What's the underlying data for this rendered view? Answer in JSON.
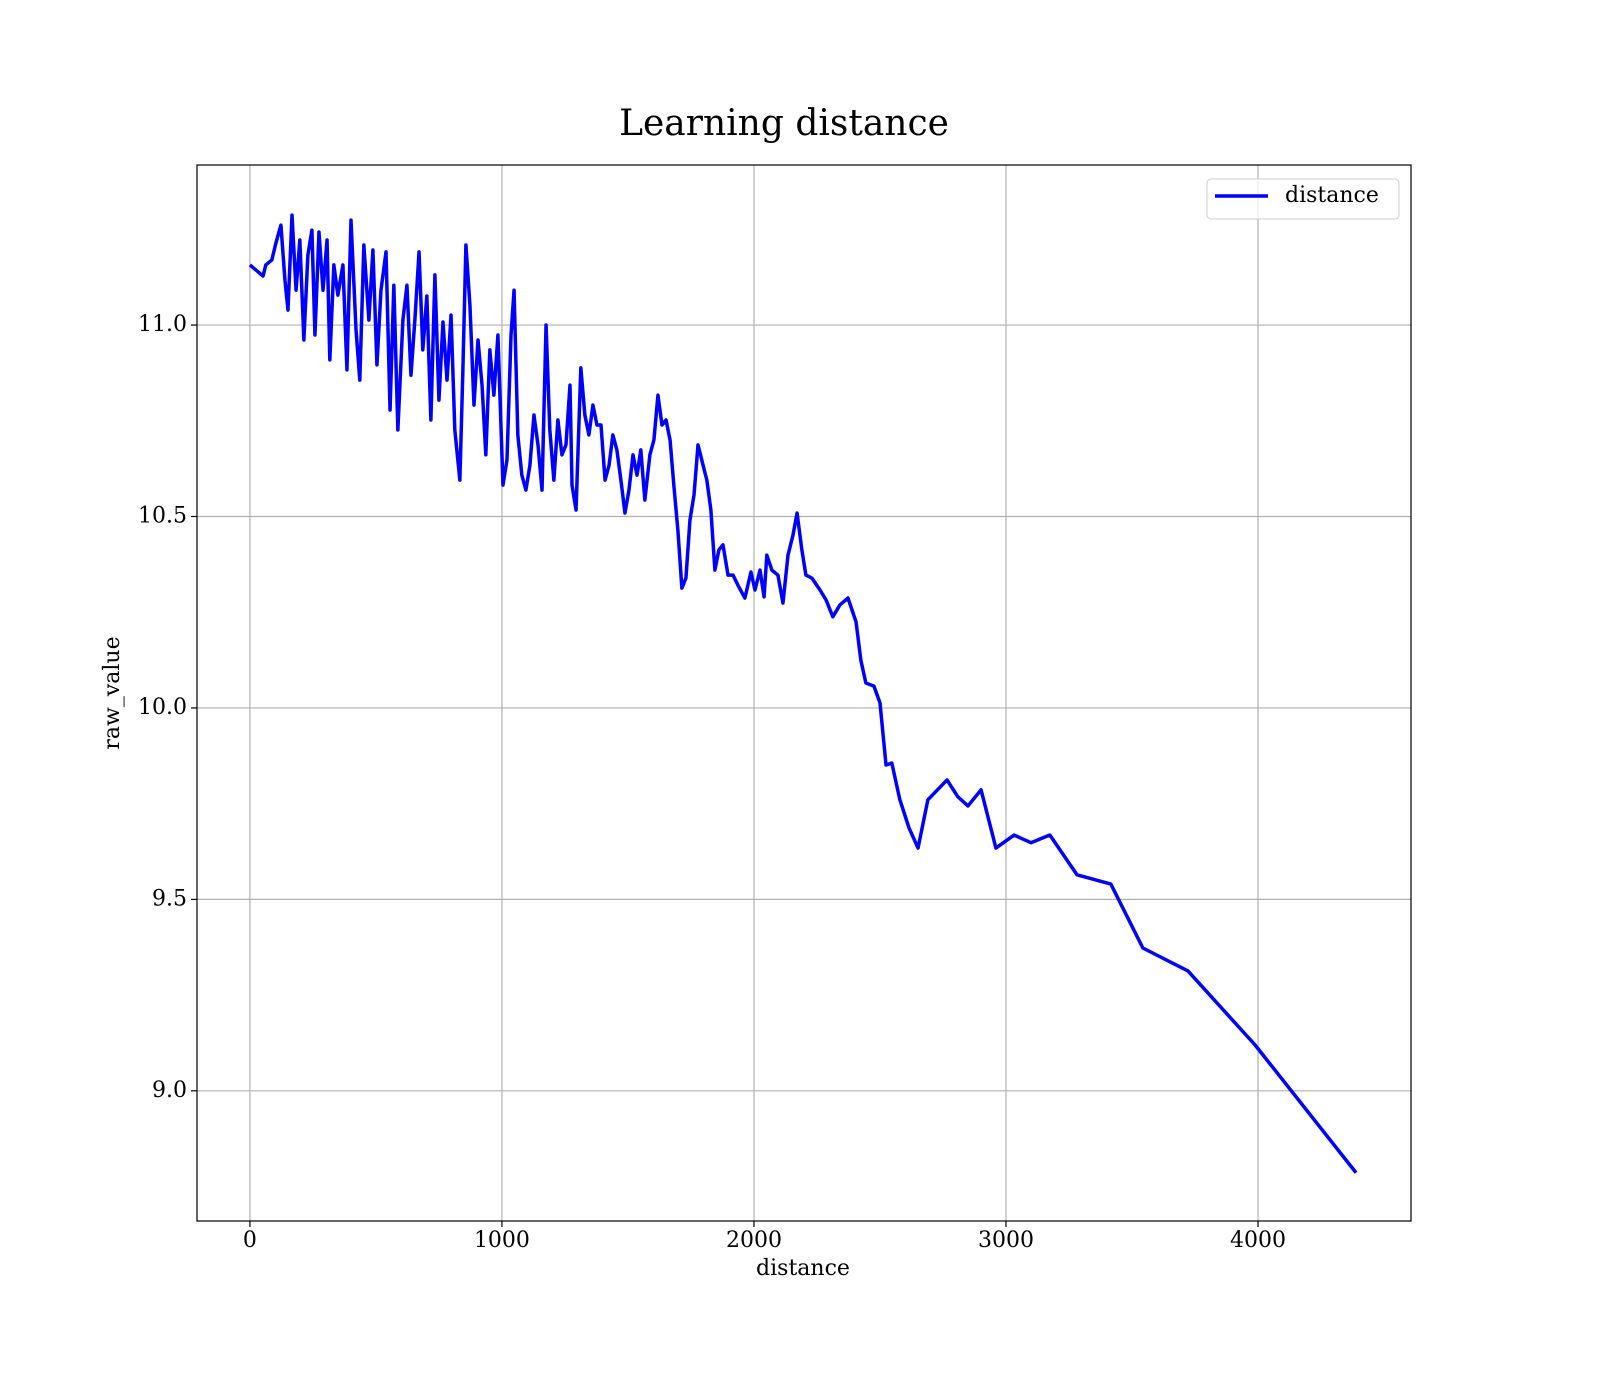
{
  "chart_data": {
    "type": "line",
    "title": "Learning distance",
    "xlabel": "distance",
    "ylabel": "raw_value",
    "xlim": [
      -210,
      4607
    ],
    "ylim": [
      8.66,
      11.418
    ],
    "xticks": [
      0,
      1000,
      2000,
      3000,
      4000
    ],
    "yticks": [
      {
        "value": 9.0,
        "label": "9.0"
      },
      9.5,
      {
        "value": 10.0,
        "label": "10.0"
      },
      10.5,
      {
        "value": 11.0,
        "label": "11.0"
      }
    ],
    "grid": true,
    "legend": "upper right",
    "x": [
      0,
      52,
      63,
      87,
      103,
      123,
      139,
      151,
      167,
      183,
      198,
      214,
      230,
      246,
      258,
      274,
      290,
      306,
      317,
      333,
      349,
      369,
      385,
      401,
      421,
      436,
      452,
      472,
      488,
      504,
      520,
      540,
      556,
      571,
      587,
      607,
      623,
      639,
      655,
      671,
      686,
      702,
      718,
      734,
      750,
      766,
      782,
      798,
      813,
      833,
      845,
      857,
      873,
      889,
      905,
      921,
      936,
      952,
      968,
      984,
      1004,
      1020,
      1036,
      1048,
      1063,
      1079,
      1095,
      1111,
      1127,
      1143,
      1159,
      1175,
      1190,
      1206,
      1222,
      1238,
      1254,
      1270,
      1278,
      1294,
      1313,
      1329,
      1345,
      1361,
      1377,
      1393,
      1409,
      1425,
      1440,
      1456,
      1472,
      1488,
      1504,
      1520,
      1536,
      1551,
      1567,
      1587,
      1603,
      1619,
      1635,
      1651,
      1667,
      1682,
      1698,
      1714,
      1730,
      1746,
      1762,
      1778,
      1798,
      1813,
      1829,
      1845,
      1861,
      1877,
      1897,
      1917,
      1936,
      1964,
      1988,
      2004,
      2024,
      2040,
      2051,
      2071,
      2095,
      2115,
      2135,
      2155,
      2171,
      2190,
      2206,
      2230,
      2262,
      2286,
      2313,
      2341,
      2373,
      2405,
      2424,
      2444,
      2476,
      2500,
      2524,
      2547,
      2579,
      2615,
      2651,
      2690,
      2766,
      2809,
      2849,
      2901,
      2960,
      3032,
      3099,
      3174,
      3282,
      3416,
      3543,
      3722,
      3988,
      4389
    ],
    "series": [
      {
        "name": "distance",
        "color": "#0000ff",
        "values": [
          11.157,
          11.128,
          11.157,
          11.17,
          11.214,
          11.261,
          11.117,
          11.039,
          11.287,
          11.091,
          11.222,
          10.961,
          11.183,
          11.248,
          10.974,
          11.243,
          11.091,
          11.222,
          10.909,
          11.157,
          11.078,
          11.157,
          10.883,
          11.274,
          10.987,
          10.856,
          11.209,
          11.013,
          11.196,
          10.896,
          11.091,
          11.191,
          10.778,
          11.104,
          10.726,
          11.013,
          11.104,
          10.869,
          11.018,
          11.191,
          10.935,
          11.076,
          10.752,
          11.131,
          10.804,
          11.008,
          10.856,
          11.026,
          10.726,
          10.595,
          10.883,
          11.209,
          11.052,
          10.791,
          10.961,
          10.843,
          10.661,
          10.935,
          10.817,
          10.974,
          10.582,
          10.648,
          10.974,
          11.091,
          10.713,
          10.608,
          10.569,
          10.634,
          10.765,
          10.687,
          10.569,
          11.0,
          10.726,
          10.595,
          10.752,
          10.661,
          10.687,
          10.843,
          10.582,
          10.517,
          10.888,
          10.765,
          10.713,
          10.791,
          10.739,
          10.739,
          10.595,
          10.634,
          10.713,
          10.674,
          10.595,
          10.509,
          10.569,
          10.661,
          10.608,
          10.674,
          10.543,
          10.661,
          10.7,
          10.817,
          10.739,
          10.752,
          10.7,
          10.582,
          10.465,
          10.313,
          10.339,
          10.491,
          10.556,
          10.687,
          10.634,
          10.595,
          10.517,
          10.36,
          10.413,
          10.426,
          10.347,
          10.347,
          10.321,
          10.287,
          10.355,
          10.308,
          10.36,
          10.29,
          10.399,
          10.36,
          10.347,
          10.274,
          10.399,
          10.452,
          10.509,
          10.413,
          10.347,
          10.339,
          10.308,
          10.282,
          10.238,
          10.269,
          10.287,
          10.225,
          10.125,
          10.065,
          10.057,
          10.013,
          9.851,
          9.856,
          9.76,
          9.687,
          9.634,
          9.76,
          9.812,
          9.768,
          9.744,
          9.786,
          9.634,
          9.668,
          9.648,
          9.668,
          9.564,
          9.54,
          9.373,
          9.313,
          9.12,
          8.786
        ]
      }
    ]
  }
}
